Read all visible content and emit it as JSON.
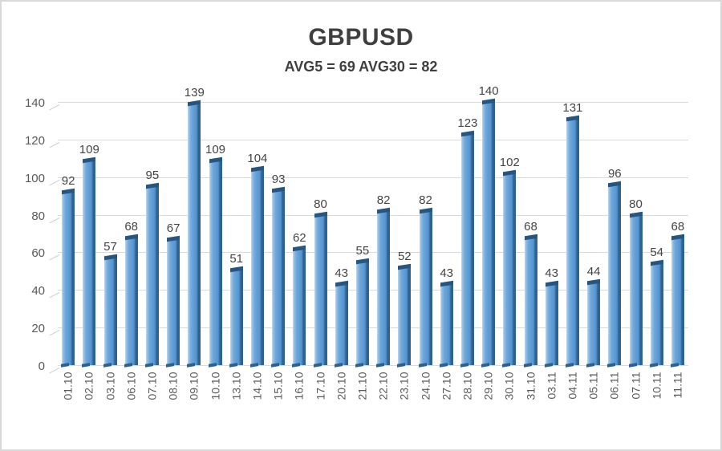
{
  "header": {
    "title": "GBPUSD",
    "subtitle": "AVG5 = 69 AVG30 = 82"
  },
  "chart_data": {
    "type": "bar",
    "title": "GBPUSD",
    "subtitle": "AVG5 = 69 AVG30 = 82",
    "categories": [
      "01.10",
      "02.10",
      "03.10",
      "06.10",
      "07.10",
      "08.10",
      "09.10",
      "10.10",
      "13.10",
      "14.10",
      "15.10",
      "16.10",
      "17.10",
      "20.10",
      "21.10",
      "22.10",
      "23.10",
      "24.10",
      "27.10",
      "28.10",
      "29.10",
      "30.10",
      "31.10",
      "03.11",
      "04.11",
      "05.11",
      "06.11",
      "07.11",
      "10.11",
      "11.11"
    ],
    "values": [
      92,
      109,
      57,
      68,
      95,
      67,
      139,
      109,
      51,
      104,
      93,
      62,
      80,
      43,
      55,
      82,
      52,
      82,
      43,
      123,
      140,
      102,
      68,
      43,
      131,
      44,
      96,
      80,
      54,
      68
    ],
    "avg5": 69,
    "avg30": 82,
    "xlabel": "",
    "ylabel": "",
    "ylim": [
      0,
      140
    ],
    "yticks": [
      0,
      20,
      40,
      60,
      80,
      100,
      120,
      140
    ],
    "grid": true,
    "legend": "none",
    "value_labels": true,
    "colors": {
      "bar_main": "#5b9bd5",
      "bar_highlight": "#c2d9ef",
      "bar_shadow_edge": "#2f6191",
      "bar_cap": "#26557f",
      "gridline": "#d9d9d9",
      "axis_text": "#595959",
      "value_text": "#444444",
      "title_text": "#3f3f3f",
      "background": "#ffffff",
      "frame_border": "#d9d9d9"
    }
  }
}
